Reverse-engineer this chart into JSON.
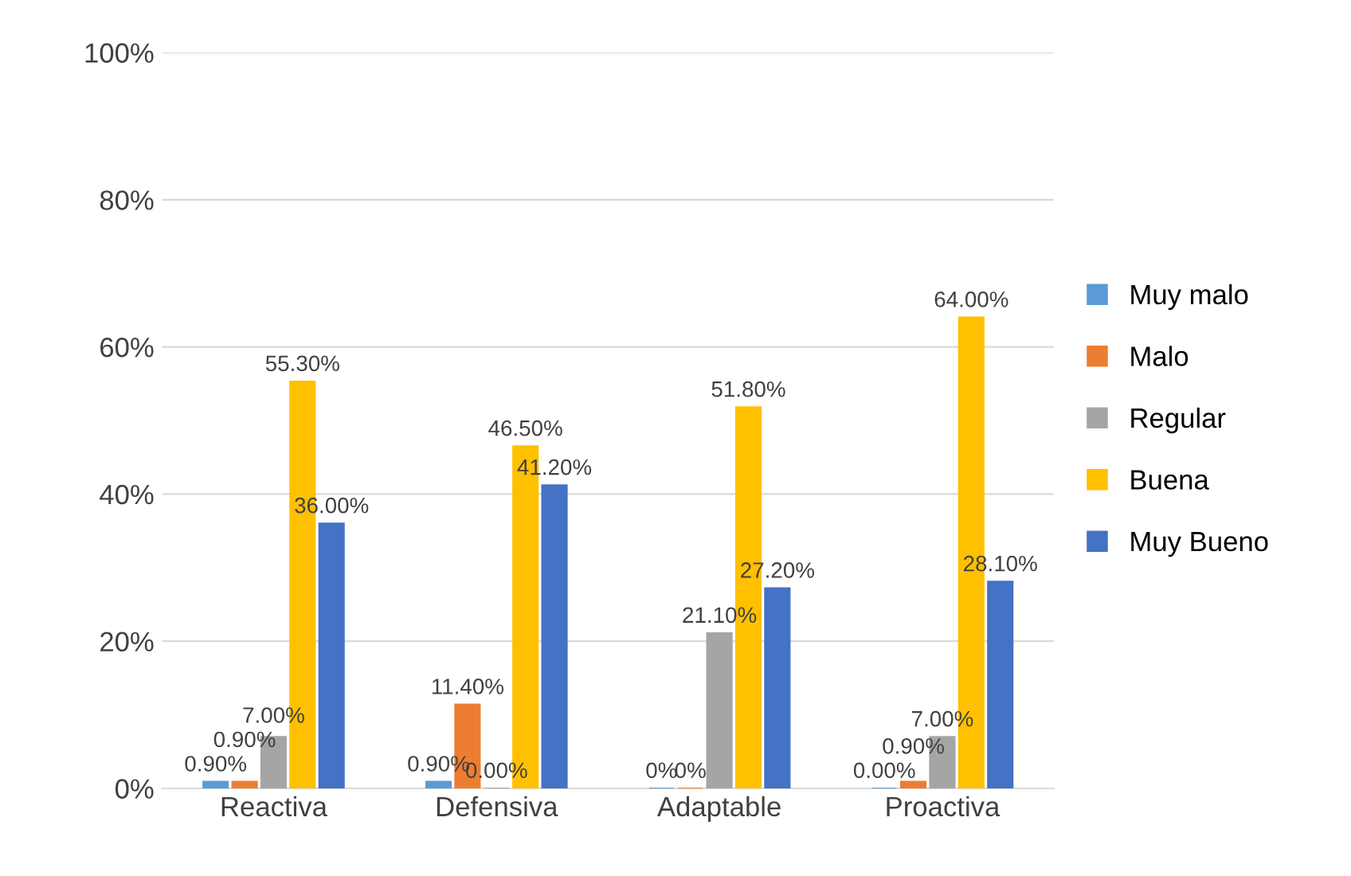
{
  "chart_data": {
    "type": "bar",
    "categories": [
      "Reactiva",
      "Defensiva",
      "Adaptable",
      "Proactiva"
    ],
    "series": [
      {
        "name": "Muy malo",
        "color": "#5b9bd5",
        "values": [
          0.9,
          0.9,
          0,
          0
        ],
        "value_labels": [
          "0.90%",
          "0.90%",
          "0%",
          "0.00%"
        ]
      },
      {
        "name": "Malo",
        "color": "#ed7d31",
        "values": [
          0.9,
          11.4,
          0,
          0.9
        ],
        "value_labels": [
          "0.90%",
          "11.40%",
          "0%",
          "0.90%"
        ]
      },
      {
        "name": "Regular",
        "color": "#a5a5a5",
        "values": [
          7.0,
          0.0,
          21.1,
          7.0
        ],
        "value_labels": [
          "7.00%",
          "0.00%",
          "21.10%",
          "7.00%"
        ]
      },
      {
        "name": "Buena",
        "color": "#ffc000",
        "values": [
          55.3,
          46.5,
          51.8,
          64.0
        ],
        "value_labels": [
          "55.30%",
          "46.50%",
          "51.80%",
          "64.00%"
        ]
      },
      {
        "name": "Muy Bueno",
        "color": "#4472c4",
        "values": [
          36.0,
          41.2,
          27.2,
          28.1
        ],
        "value_labels": [
          "36.00%",
          "41.20%",
          "27.20%",
          "28.10%"
        ]
      }
    ],
    "ylim": [
      0,
      100
    ],
    "yticks": [
      {
        "value": 0,
        "label": "0%"
      },
      {
        "value": 20,
        "label": "20%"
      },
      {
        "value": 40,
        "label": "40%"
      },
      {
        "value": 60,
        "label": "60%"
      },
      {
        "value": 80,
        "label": "80%"
      },
      {
        "value": 100,
        "label": "100%"
      }
    ],
    "grid": "y",
    "legend": "right"
  }
}
